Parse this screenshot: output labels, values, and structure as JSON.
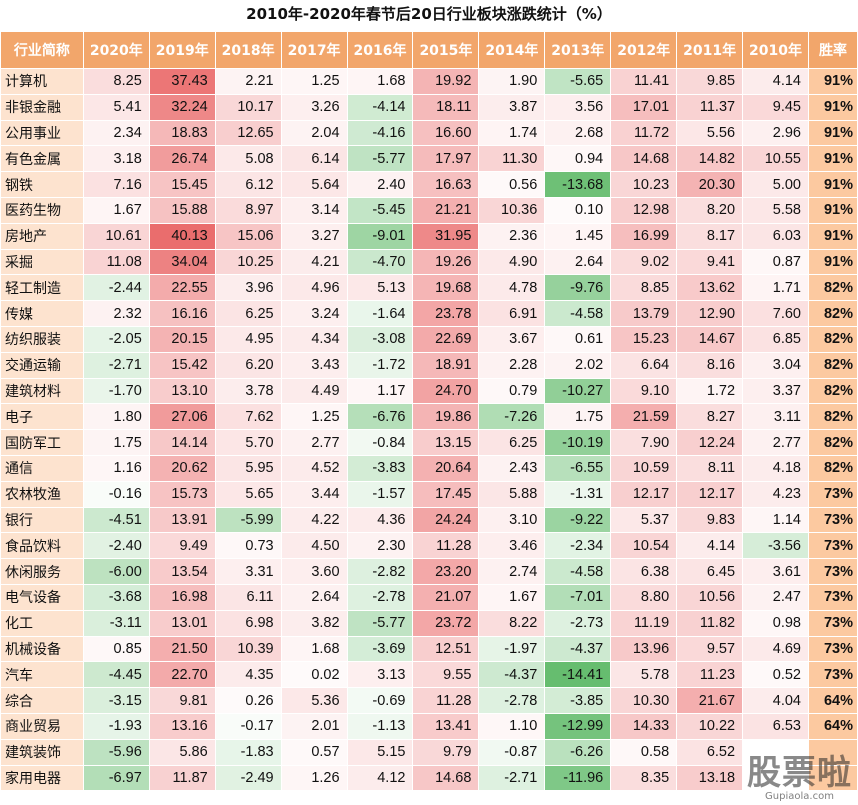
{
  "title": "2010年-2020年春节后20日行业板块涨跌统计（%）",
  "chart_data": {
    "type": "table",
    "header_label": "行业简称",
    "rate_label": "胜率",
    "years": [
      "2020年",
      "2019年",
      "2018年",
      "2017年",
      "2016年",
      "2015年",
      "2014年",
      "2013年",
      "2012年",
      "2011年",
      "2010年"
    ],
    "rows": [
      {
        "name": "计算机",
        "values": [
          8.25,
          37.43,
          2.21,
          1.25,
          1.68,
          19.92,
          1.9,
          -5.65,
          11.41,
          9.85,
          4.14
        ],
        "rate": "91%"
      },
      {
        "name": "非银金融",
        "values": [
          5.41,
          32.24,
          10.17,
          3.26,
          -4.14,
          18.11,
          3.87,
          3.56,
          17.01,
          11.37,
          9.45
        ],
        "rate": "91%"
      },
      {
        "name": "公用事业",
        "values": [
          2.34,
          18.83,
          12.65,
          2.04,
          -4.16,
          16.6,
          1.74,
          2.68,
          11.72,
          5.56,
          2.96
        ],
        "rate": "91%"
      },
      {
        "name": "有色金属",
        "values": [
          3.18,
          26.74,
          5.08,
          6.14,
          -5.77,
          17.97,
          11.3,
          0.94,
          14.68,
          14.82,
          10.55
        ],
        "rate": "91%"
      },
      {
        "name": "钢铁",
        "values": [
          7.16,
          15.45,
          6.12,
          5.64,
          2.4,
          16.63,
          0.56,
          -13.68,
          10.23,
          20.3,
          5.0
        ],
        "rate": "91%"
      },
      {
        "name": "医药生物",
        "values": [
          1.67,
          15.88,
          8.97,
          3.14,
          -5.45,
          21.21,
          10.36,
          0.1,
          12.98,
          8.2,
          5.58
        ],
        "rate": "91%"
      },
      {
        "name": "房地产",
        "values": [
          10.61,
          40.13,
          15.06,
          3.27,
          -9.01,
          31.95,
          2.36,
          1.45,
          16.99,
          8.17,
          6.03
        ],
        "rate": "91%"
      },
      {
        "name": "采掘",
        "values": [
          11.08,
          34.04,
          10.25,
          4.21,
          -4.7,
          19.26,
          4.9,
          2.64,
          9.02,
          9.41,
          0.87
        ],
        "rate": "91%"
      },
      {
        "name": "轻工制造",
        "values": [
          -2.44,
          22.55,
          3.96,
          4.96,
          5.13,
          19.68,
          4.78,
          -9.76,
          8.85,
          13.62,
          1.71
        ],
        "rate": "82%"
      },
      {
        "name": "传媒",
        "values": [
          2.32,
          16.16,
          6.25,
          3.24,
          -1.64,
          23.78,
          6.91,
          -4.58,
          13.79,
          12.9,
          7.6
        ],
        "rate": "82%"
      },
      {
        "name": "纺织服装",
        "values": [
          -2.05,
          20.15,
          4.95,
          4.34,
          -3.08,
          22.69,
          3.67,
          0.61,
          15.23,
          14.67,
          6.85
        ],
        "rate": "82%"
      },
      {
        "name": "交通运输",
        "values": [
          -2.71,
          15.42,
          6.2,
          3.43,
          -1.72,
          18.91,
          2.28,
          2.02,
          6.64,
          8.16,
          3.04
        ],
        "rate": "82%"
      },
      {
        "name": "建筑材料",
        "values": [
          -1.7,
          13.1,
          3.78,
          4.49,
          1.17,
          24.7,
          0.79,
          -10.27,
          9.1,
          1.72,
          3.37
        ],
        "rate": "82%"
      },
      {
        "name": "电子",
        "values": [
          1.8,
          27.06,
          7.62,
          1.25,
          -6.76,
          19.86,
          -7.26,
          1.75,
          21.59,
          8.27,
          3.11
        ],
        "rate": "82%"
      },
      {
        "name": "国防军工",
        "values": [
          1.75,
          14.14,
          5.7,
          2.77,
          -0.84,
          13.15,
          6.25,
          -10.19,
          7.9,
          12.24,
          2.77
        ],
        "rate": "82%"
      },
      {
        "name": "通信",
        "values": [
          1.16,
          20.62,
          5.95,
          4.52,
          -3.83,
          20.64,
          2.43,
          -6.55,
          10.59,
          8.11,
          4.18
        ],
        "rate": "82%"
      },
      {
        "name": "农林牧渔",
        "values": [
          -0.16,
          15.73,
          5.65,
          3.44,
          -1.57,
          17.45,
          5.88,
          -1.31,
          12.17,
          12.17,
          4.23
        ],
        "rate": "73%"
      },
      {
        "name": "银行",
        "values": [
          -4.51,
          13.91,
          -5.99,
          4.22,
          4.36,
          24.24,
          3.1,
          -9.22,
          5.37,
          9.83,
          1.14
        ],
        "rate": "73%"
      },
      {
        "name": "食品饮料",
        "values": [
          -2.4,
          9.49,
          0.73,
          4.5,
          2.3,
          11.28,
          3.46,
          -2.34,
          10.54,
          4.14,
          -3.56
        ],
        "rate": "73%"
      },
      {
        "name": "休闲服务",
        "values": [
          -6.0,
          13.54,
          3.31,
          3.6,
          -2.82,
          23.2,
          2.74,
          -4.58,
          6.38,
          6.45,
          3.61
        ],
        "rate": "73%"
      },
      {
        "name": "电气设备",
        "values": [
          -3.68,
          16.98,
          6.11,
          2.64,
          -2.78,
          21.07,
          1.67,
          -7.01,
          8.8,
          10.56,
          2.47
        ],
        "rate": "73%"
      },
      {
        "name": "化工",
        "values": [
          -3.11,
          13.01,
          6.98,
          3.82,
          -5.77,
          23.72,
          8.22,
          -2.73,
          11.19,
          11.82,
          0.98
        ],
        "rate": "73%"
      },
      {
        "name": "机械设备",
        "values": [
          0.85,
          21.5,
          10.39,
          1.68,
          -3.69,
          12.51,
          -1.97,
          -4.37,
          13.96,
          9.57,
          4.69
        ],
        "rate": "73%"
      },
      {
        "name": "汽车",
        "values": [
          -4.45,
          22.7,
          4.35,
          0.02,
          3.13,
          9.55,
          -4.37,
          -14.41,
          5.78,
          11.23,
          0.52
        ],
        "rate": "73%"
      },
      {
        "name": "综合",
        "values": [
          -3.15,
          9.81,
          0.26,
          5.36,
          -0.69,
          11.28,
          -2.78,
          -3.85,
          10.3,
          21.67,
          4.04
        ],
        "rate": "64%"
      },
      {
        "name": "商业贸易",
        "values": [
          -1.93,
          13.16,
          -0.17,
          2.01,
          -1.13,
          13.41,
          1.1,
          -12.99,
          14.33,
          10.22,
          6.53
        ],
        "rate": "64%"
      },
      {
        "name": "建筑装饰",
        "values": [
          -5.96,
          5.86,
          -1.83,
          0.57,
          5.15,
          9.79,
          -0.87,
          -6.26,
          0.58,
          6.52,
          null
        ],
        "rate": ""
      },
      {
        "name": "家用电器",
        "values": [
          -6.97,
          11.87,
          -2.49,
          1.26,
          4.12,
          14.68,
          -2.71,
          -11.96,
          8.35,
          13.18,
          null
        ],
        "rate": ""
      }
    ],
    "color_scale": {
      "positive": "#ea6a6a",
      "negative": "#62bb6b",
      "neutral": "#ffffff"
    }
  },
  "watermark": {
    "text": "股票啦",
    "url": "Gupiaola.com"
  }
}
